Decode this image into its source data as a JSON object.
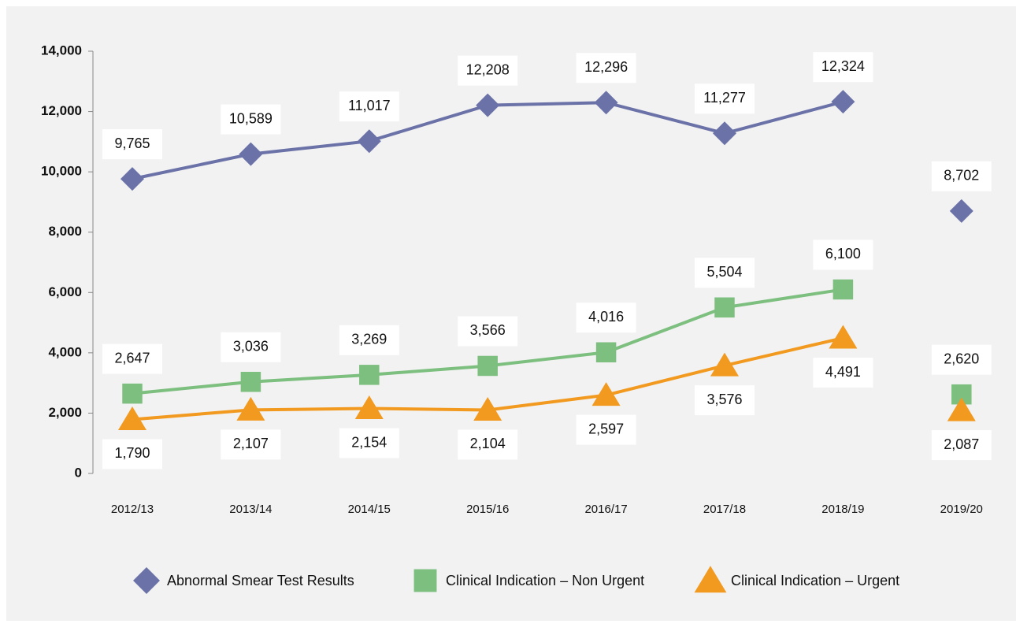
{
  "chart_data": {
    "type": "line",
    "categories": [
      "2012/13",
      "2013/14",
      "2014/15",
      "2015/16",
      "2016/17",
      "2017/18",
      "2018/19",
      "2019/20"
    ],
    "break_before_index": 7,
    "series": [
      {
        "name": "Abnormal Smear Test Results",
        "color": "#6b72a8",
        "marker": "diamond",
        "values": [
          9765,
          10589,
          11017,
          12208,
          12296,
          11277,
          12324,
          8702
        ],
        "value_labels": [
          "9,765",
          "10,589",
          "11,017",
          "12,208",
          "12,296",
          "11,277",
          "12,324",
          "8,702"
        ]
      },
      {
        "name": "Clinical Indication – Non Urgent",
        "color": "#7dbf7f",
        "marker": "square",
        "values": [
          2647,
          3036,
          3269,
          3566,
          4016,
          5504,
          6100,
          2620
        ],
        "value_labels": [
          "2,647",
          "3,036",
          "3,269",
          "3,566",
          "4,016",
          "5,504",
          "6,100",
          "2,620"
        ]
      },
      {
        "name": "Clinical Indication – Urgent",
        "color": "#f29a1f",
        "marker": "triangle",
        "values": [
          1790,
          2107,
          2154,
          2104,
          2597,
          3576,
          4491,
          2087
        ],
        "value_labels": [
          "1,790",
          "2,107",
          "2,154",
          "2,104",
          "2,597",
          "3,576",
          "4,491",
          "2,087"
        ]
      }
    ],
    "ylim": [
      0,
      14000
    ],
    "yticks": [
      0,
      {
        "value": 2000,
        "label": "2,000"
      },
      {
        "value": 4000,
        "label": "4,000"
      },
      {
        "value": 6000,
        "label": "6,000"
      },
      {
        "value": 8000,
        "label": "8,000"
      },
      {
        "value": 10000,
        "label": "10,000"
      },
      {
        "value": 12000,
        "label": "12,000"
      },
      {
        "value": 14000,
        "label": "14,000"
      }
    ],
    "legend": "bottom"
  }
}
